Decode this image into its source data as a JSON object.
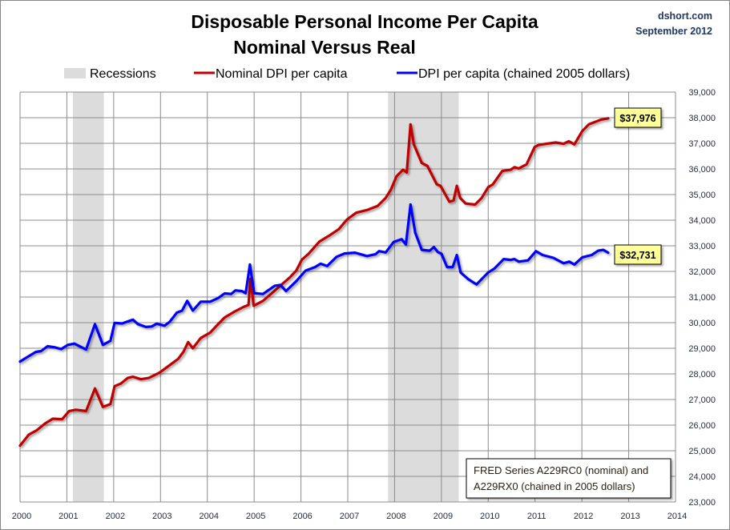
{
  "chart_data": {
    "type": "line",
    "title": "Disposable Personal Income Per Capita",
    "subtitle": "Nominal Versus Real",
    "source": "dshort.com",
    "date": "September 2012",
    "xlabel": "",
    "ylabel": "",
    "xlim": [
      2000,
      2014
    ],
    "ylim": [
      23000,
      39000
    ],
    "x_ticks": [
      "2000",
      "2001",
      "2002",
      "2003",
      "2004",
      "2005",
      "2006",
      "2007",
      "2008",
      "2009",
      "2010",
      "2011",
      "2012",
      "2013",
      "2014"
    ],
    "y_ticks": [
      "23,000",
      "24,000",
      "25,000",
      "26,000",
      "27,000",
      "28,000",
      "29,000",
      "30,000",
      "31,000",
      "32,000",
      "33,000",
      "34,000",
      "35,000",
      "36,000",
      "37,000",
      "38,000",
      "39,000"
    ],
    "grid": true,
    "legend_position": "top",
    "legend": {
      "recessions": "Recessions"
    },
    "recessions": [
      {
        "start": 2001.13,
        "end": 2001.79
      },
      {
        "start": 2007.86,
        "end": 2009.37
      }
    ],
    "recession_color": "#dcdcdc",
    "annotation": [
      "FRED Series A229RC0 (nominal) and",
      "A229RX0 (chained in 2005 dollars)"
    ],
    "series": [
      {
        "name": "Nominal DPI per capita",
        "color": "#c00000",
        "last_label": "$37,976",
        "points": [
          [
            2000,
            25200
          ],
          [
            2000.19,
            25630
          ],
          [
            2000.36,
            25800
          ],
          [
            2000.53,
            26060
          ],
          [
            2000.7,
            26250
          ],
          [
            2000.9,
            26230
          ],
          [
            2001.05,
            26550
          ],
          [
            2001.19,
            26600
          ],
          [
            2001.41,
            26550
          ],
          [
            2001.6,
            27430
          ],
          [
            2001.77,
            26710
          ],
          [
            2001.93,
            26820
          ],
          [
            2002.02,
            27520
          ],
          [
            2002.15,
            27620
          ],
          [
            2002.3,
            27840
          ],
          [
            2002.41,
            27890
          ],
          [
            2002.58,
            27790
          ],
          [
            2002.75,
            27840
          ],
          [
            2002.98,
            28050
          ],
          [
            2003.18,
            28320
          ],
          [
            2003.38,
            28590
          ],
          [
            2003.49,
            28860
          ],
          [
            2003.59,
            29240
          ],
          [
            2003.69,
            29000
          ],
          [
            2003.86,
            29400
          ],
          [
            2004.06,
            29610
          ],
          [
            2004.23,
            29940
          ],
          [
            2004.37,
            30200
          ],
          [
            2004.57,
            30420
          ],
          [
            2004.77,
            30610
          ],
          [
            2004.88,
            30690
          ],
          [
            2004.92,
            31710
          ],
          [
            2004.99,
            30660
          ],
          [
            2005.19,
            30850
          ],
          [
            2005.36,
            31120
          ],
          [
            2005.59,
            31490
          ],
          [
            2005.76,
            31760
          ],
          [
            2005.9,
            32030
          ],
          [
            2006.02,
            32460
          ],
          [
            2006.16,
            32680
          ],
          [
            2006.39,
            33160
          ],
          [
            2006.59,
            33380
          ],
          [
            2006.81,
            33650
          ],
          [
            2006.98,
            34020
          ],
          [
            2007.18,
            34290
          ],
          [
            2007.42,
            34400
          ],
          [
            2007.64,
            34560
          ],
          [
            2007.81,
            34870
          ],
          [
            2007.92,
            35190
          ],
          [
            2008.04,
            35710
          ],
          [
            2008.18,
            35970
          ],
          [
            2008.26,
            35860
          ],
          [
            2008.34,
            37740
          ],
          [
            2008.41,
            36960
          ],
          [
            2008.58,
            36230
          ],
          [
            2008.7,
            36120
          ],
          [
            2008.9,
            35400
          ],
          [
            2008.98,
            35340
          ],
          [
            2009.17,
            34720
          ],
          [
            2009.26,
            34770
          ],
          [
            2009.33,
            35340
          ],
          [
            2009.4,
            34870
          ],
          [
            2009.52,
            34650
          ],
          [
            2009.72,
            34610
          ],
          [
            2009.86,
            34870
          ],
          [
            2010.0,
            35290
          ],
          [
            2010.1,
            35400
          ],
          [
            2010.3,
            35920
          ],
          [
            2010.48,
            35970
          ],
          [
            2010.56,
            36070
          ],
          [
            2010.65,
            36020
          ],
          [
            2010.82,
            36180
          ],
          [
            2010.99,
            36850
          ],
          [
            2011.07,
            36930
          ],
          [
            2011.24,
            36980
          ],
          [
            2011.44,
            37030
          ],
          [
            2011.61,
            36980
          ],
          [
            2011.72,
            37080
          ],
          [
            2011.84,
            36960
          ],
          [
            2012.01,
            37480
          ],
          [
            2012.15,
            37740
          ],
          [
            2012.4,
            37920
          ],
          [
            2012.56,
            37976
          ]
        ]
      },
      {
        "name": "DPI per capita (chained 2005 dollars)",
        "color": "#0000ff",
        "last_label": "$32,731",
        "points": [
          [
            2000,
            28480
          ],
          [
            2000.14,
            28640
          ],
          [
            2000.34,
            28860
          ],
          [
            2000.45,
            28890
          ],
          [
            2000.59,
            29080
          ],
          [
            2000.73,
            29040
          ],
          [
            2000.88,
            28970
          ],
          [
            2001.02,
            29130
          ],
          [
            2001.16,
            29180
          ],
          [
            2001.27,
            29080
          ],
          [
            2001.41,
            28950
          ],
          [
            2001.6,
            29940
          ],
          [
            2001.77,
            29130
          ],
          [
            2001.93,
            29290
          ],
          [
            2002.02,
            29990
          ],
          [
            2002.18,
            29970
          ],
          [
            2002.41,
            30120
          ],
          [
            2002.52,
            29940
          ],
          [
            2002.69,
            29830
          ],
          [
            2002.81,
            29850
          ],
          [
            2002.92,
            29960
          ],
          [
            2003.09,
            29880
          ],
          [
            2003.2,
            30040
          ],
          [
            2003.35,
            30390
          ],
          [
            2003.46,
            30470
          ],
          [
            2003.57,
            30850
          ],
          [
            2003.69,
            30470
          ],
          [
            2003.86,
            30820
          ],
          [
            2004.06,
            30820
          ],
          [
            2004.23,
            30960
          ],
          [
            2004.37,
            31140
          ],
          [
            2004.51,
            31120
          ],
          [
            2004.6,
            31260
          ],
          [
            2004.74,
            31230
          ],
          [
            2004.82,
            31150
          ],
          [
            2004.91,
            32270
          ],
          [
            2005.0,
            31150
          ],
          [
            2005.19,
            31120
          ],
          [
            2005.44,
            31440
          ],
          [
            2005.56,
            31470
          ],
          [
            2005.68,
            31230
          ],
          [
            2005.9,
            31620
          ],
          [
            2006.1,
            32030
          ],
          [
            2006.3,
            32170
          ],
          [
            2006.42,
            32300
          ],
          [
            2006.56,
            32210
          ],
          [
            2006.76,
            32570
          ],
          [
            2006.93,
            32700
          ],
          [
            2007.15,
            32730
          ],
          [
            2007.41,
            32600
          ],
          [
            2007.59,
            32670
          ],
          [
            2007.67,
            32790
          ],
          [
            2007.81,
            32740
          ],
          [
            2007.98,
            33150
          ],
          [
            2008.15,
            33260
          ],
          [
            2008.24,
            33050
          ],
          [
            2008.34,
            34610
          ],
          [
            2008.44,
            33520
          ],
          [
            2008.58,
            32840
          ],
          [
            2008.75,
            32810
          ],
          [
            2008.84,
            32950
          ],
          [
            2008.92,
            32760
          ],
          [
            2009.0,
            32690
          ],
          [
            2009.12,
            32170
          ],
          [
            2009.24,
            32170
          ],
          [
            2009.33,
            32640
          ],
          [
            2009.41,
            31960
          ],
          [
            2009.57,
            31700
          ],
          [
            2009.75,
            31490
          ],
          [
            2010.0,
            31960
          ],
          [
            2010.13,
            32110
          ],
          [
            2010.33,
            32480
          ],
          [
            2010.48,
            32450
          ],
          [
            2010.56,
            32480
          ],
          [
            2010.65,
            32380
          ],
          [
            2010.85,
            32430
          ],
          [
            2011.02,
            32790
          ],
          [
            2011.16,
            32640
          ],
          [
            2011.39,
            32530
          ],
          [
            2011.61,
            32320
          ],
          [
            2011.73,
            32380
          ],
          [
            2011.84,
            32270
          ],
          [
            2012.01,
            32550
          ],
          [
            2012.21,
            32640
          ],
          [
            2012.35,
            32810
          ],
          [
            2012.46,
            32840
          ],
          [
            2012.56,
            32731
          ]
        ]
      }
    ]
  }
}
